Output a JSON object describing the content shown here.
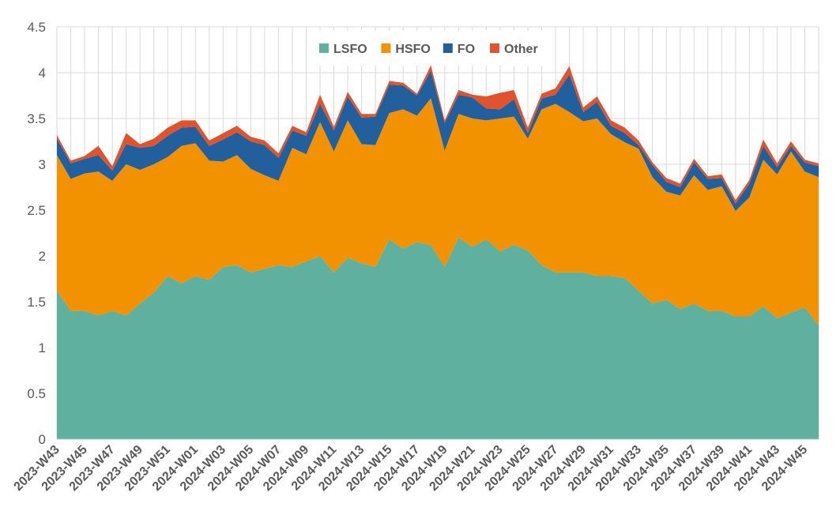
{
  "chart_data": {
    "type": "area",
    "stacked": true,
    "title": "",
    "xlabel": "",
    "ylabel": "",
    "ylim": [
      0,
      4.5
    ],
    "yticks": [
      0,
      0.5,
      1,
      1.5,
      2,
      2.5,
      3,
      3.5,
      4,
      4.5
    ],
    "ytick_labels": [
      "0",
      "0.5",
      "1",
      "1.5",
      "2",
      "2.5",
      "3",
      "3.5",
      "4",
      "4.5"
    ],
    "grid": true,
    "legend_position": "top-center",
    "categories": [
      "2023-W43",
      "2023-W44",
      "2023-W45",
      "2023-W46",
      "2023-W47",
      "2023-W48",
      "2023-W49",
      "2023-W50",
      "2023-W51",
      "2023-W52",
      "2024-W01",
      "2024-W02",
      "2024-W03",
      "2024-W04",
      "2024-W05",
      "2024-W06",
      "2024-W07",
      "2024-W08",
      "2024-W09",
      "2024-W10",
      "2024-W11",
      "2024-W12",
      "2024-W13",
      "2024-W14",
      "2024-W15",
      "2024-W16",
      "2024-W17",
      "2024-W18",
      "2024-W19",
      "2024-W20",
      "2024-W21",
      "2024-W22",
      "2024-W23",
      "2024-W24",
      "2024-W25",
      "2024-W26",
      "2024-W27",
      "2024-W28",
      "2024-W29",
      "2024-W30",
      "2024-W31",
      "2024-W32",
      "2024-W33",
      "2024-W34",
      "2024-W35",
      "2024-W36",
      "2024-W37",
      "2024-W38",
      "2024-W39",
      "2024-W40",
      "2024-W41",
      "2024-W42",
      "2024-W43",
      "2024-W44",
      "2024-W45",
      "2024-W46"
    ],
    "x_tick_labels": [
      "2023-W43",
      "2023-W45",
      "2023-W47",
      "2023-W49",
      "2023-W51",
      "2024-W01",
      "2024-W03",
      "2024-W05",
      "2024-W07",
      "2024-W09",
      "2024-W11",
      "2024-W13",
      "2024-W15",
      "2024-W17",
      "2024-W19",
      "2024-W21",
      "2024-W23",
      "2024-W25",
      "2024-W27",
      "2024-W29",
      "2024-W31",
      "2024-W33",
      "2024-W35",
      "2024-W37",
      "2024-W39",
      "2024-W41",
      "2024-W43",
      "2024-W45"
    ],
    "series": [
      {
        "name": "LSFO",
        "color": "#5fb09e",
        "values": [
          1.62,
          1.4,
          1.4,
          1.35,
          1.4,
          1.35,
          1.48,
          1.6,
          1.78,
          1.7,
          1.78,
          1.74,
          1.88,
          1.9,
          1.82,
          1.86,
          1.9,
          1.88,
          1.94,
          2.0,
          1.82,
          1.98,
          1.92,
          1.88,
          2.18,
          2.08,
          2.15,
          2.12,
          1.88,
          2.2,
          2.1,
          2.18,
          2.05,
          2.12,
          2.06,
          1.9,
          1.82,
          1.82,
          1.82,
          1.78,
          1.78,
          1.76,
          1.62,
          1.48,
          1.52,
          1.42,
          1.48,
          1.4,
          1.4,
          1.34,
          1.34,
          1.45,
          1.32,
          1.38,
          1.44,
          1.24
        ]
      },
      {
        "name": "HSFO",
        "color": "#f39200",
        "values": [
          1.48,
          1.44,
          1.5,
          1.57,
          1.42,
          1.65,
          1.46,
          1.4,
          1.3,
          1.5,
          1.45,
          1.3,
          1.15,
          1.2,
          1.13,
          1.02,
          0.92,
          1.3,
          1.17,
          1.46,
          1.32,
          1.5,
          1.3,
          1.33,
          1.38,
          1.52,
          1.38,
          1.6,
          1.27,
          1.35,
          1.4,
          1.3,
          1.45,
          1.4,
          1.22,
          1.7,
          1.84,
          1.75,
          1.65,
          1.72,
          1.55,
          1.48,
          1.55,
          1.38,
          1.18,
          1.24,
          1.4,
          1.32,
          1.36,
          1.15,
          1.3,
          1.6,
          1.57,
          1.76,
          1.48,
          1.62
        ]
      },
      {
        "name": "FO",
        "color": "#21609c",
        "values": [
          0.18,
          0.17,
          0.16,
          0.18,
          0.11,
          0.22,
          0.24,
          0.2,
          0.23,
          0.2,
          0.18,
          0.16,
          0.24,
          0.25,
          0.3,
          0.33,
          0.25,
          0.19,
          0.2,
          0.2,
          0.23,
          0.26,
          0.29,
          0.31,
          0.31,
          0.26,
          0.22,
          0.3,
          0.3,
          0.21,
          0.23,
          0.13,
          0.1,
          0.19,
          0.06,
          0.12,
          0.1,
          0.41,
          0.1,
          0.18,
          0.09,
          0.1,
          0.04,
          0.13,
          0.11,
          0.09,
          0.14,
          0.12,
          0.09,
          0.08,
          0.15,
          0.15,
          0.08,
          0.06,
          0.1,
          0.12
        ]
      },
      {
        "name": "Other",
        "color": "#e1532c",
        "values": [
          0.04,
          0.03,
          0.03,
          0.1,
          0.05,
          0.12,
          0.04,
          0.08,
          0.09,
          0.08,
          0.07,
          0.06,
          0.07,
          0.07,
          0.05,
          0.05,
          0.05,
          0.05,
          0.04,
          0.1,
          0.04,
          0.05,
          0.04,
          0.03,
          0.04,
          0.03,
          0.02,
          0.06,
          0.03,
          0.05,
          0.03,
          0.13,
          0.18,
          0.1,
          0.06,
          0.05,
          0.07,
          0.09,
          0.05,
          0.06,
          0.06,
          0.06,
          0.05,
          0.03,
          0.04,
          0.04,
          0.04,
          0.03,
          0.04,
          0.04,
          0.04,
          0.07,
          0.04,
          0.05,
          0.03,
          0.03
        ]
      }
    ]
  }
}
